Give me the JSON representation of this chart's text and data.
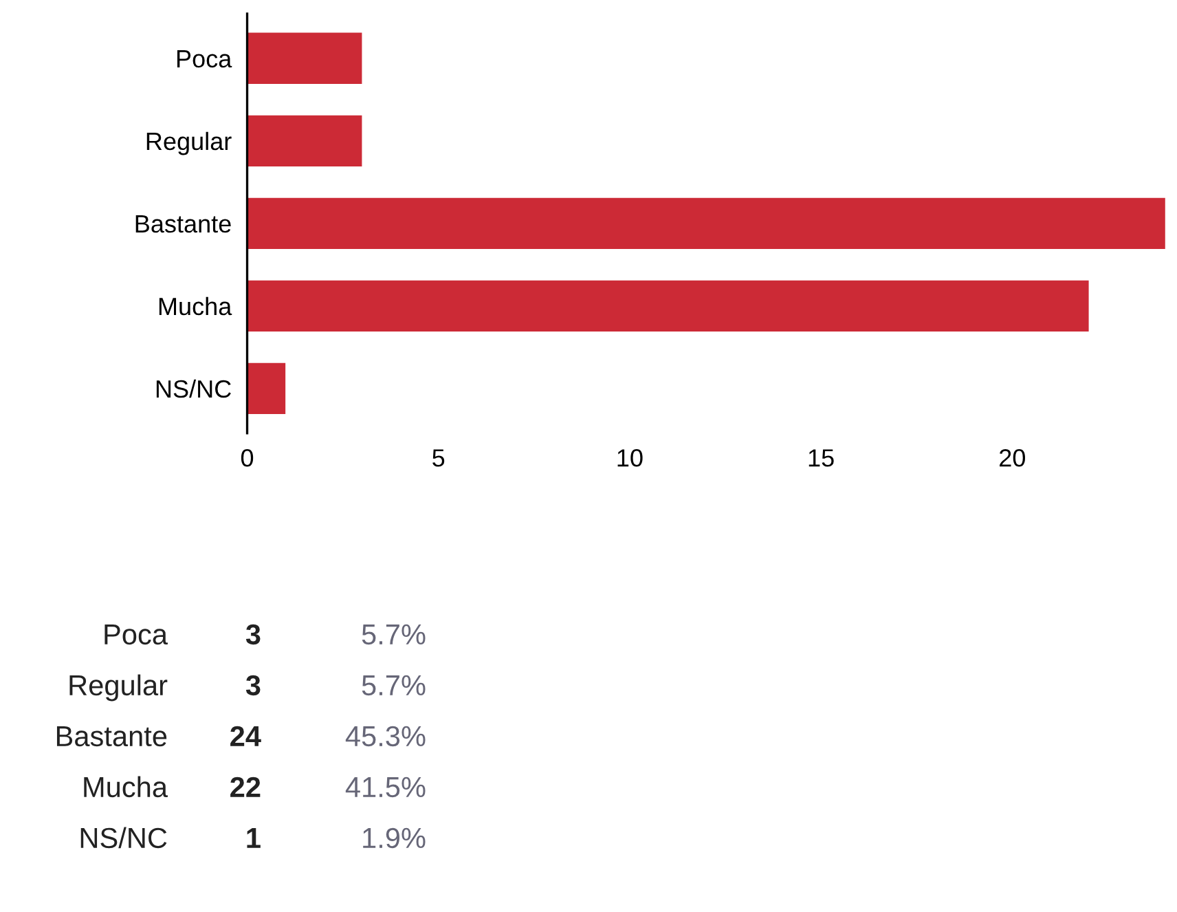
{
  "chart_data": {
    "type": "bar",
    "orientation": "horizontal",
    "categories": [
      "Poca",
      "Regular",
      "Bastante",
      "Mucha",
      "NS/NC"
    ],
    "values": [
      3,
      3,
      24,
      22,
      1
    ],
    "color": "#cc2a36",
    "xlim": [
      0,
      24
    ],
    "xticks": [
      0,
      5,
      10,
      15,
      20
    ],
    "grid": false,
    "legend": false,
    "annotations": [
      "3",
      "5.7%",
      "3",
      "5.7%",
      "24",
      "45.3%",
      "22",
      "41.5%",
      "1",
      "1.9%"
    ]
  }
}
